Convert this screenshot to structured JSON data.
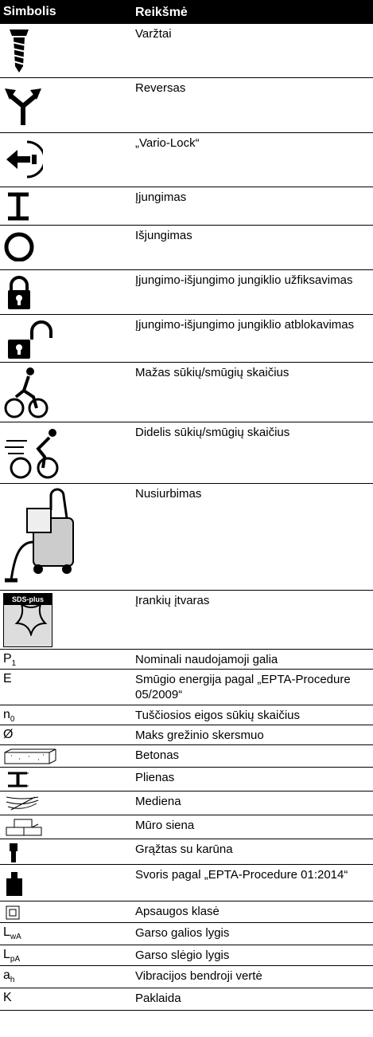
{
  "header": {
    "symbol": "Simbolis",
    "meaning": "Reikšmė"
  },
  "rows": [
    {
      "meaning": "Varžtai"
    },
    {
      "meaning": "Reversas"
    },
    {
      "meaning": "„Vario-Lock“"
    },
    {
      "meaning": "Įjungimas"
    },
    {
      "meaning": "Išjungimas"
    },
    {
      "meaning": "Įjungimo-išjungimo jungiklio užfiksavimas"
    },
    {
      "meaning": "Įjungimo-išjungimo jungiklio atblokavimas"
    },
    {
      "meaning": "Mažas sūkių/smūgių skaičius"
    },
    {
      "meaning": "Didelis sūkių/smūgių skaičius"
    },
    {
      "meaning": "Nusiurbimas"
    },
    {
      "meaning": "Įrankių įtvaras",
      "icon_label": "SDS-plus"
    },
    {
      "symbol": {
        "text": "P",
        "sub": "1"
      },
      "meaning": "Nominali naudojamoji galia"
    },
    {
      "symbol": {
        "text": "E"
      },
      "meaning": "Smūgio energija pagal „EPTA-Procedure 05/2009“"
    },
    {
      "symbol": {
        "text": "n",
        "sub": "0"
      },
      "meaning": "Tuščiosios eigos sūkių skaičius"
    },
    {
      "symbol": {
        "text": "Ø"
      },
      "meaning": "Maks grežinio skersmuo"
    },
    {
      "meaning": "Betonas"
    },
    {
      "meaning": "Plienas"
    },
    {
      "meaning": "Mediena"
    },
    {
      "meaning": "Mūro siena"
    },
    {
      "meaning": "Grąžtas su karūna"
    },
    {
      "meaning": "Svoris pagal „EPTA-Procedure 01:2014“"
    },
    {
      "meaning": "Apsaugos klasė"
    },
    {
      "symbol": {
        "text": "L",
        "sub": "wA"
      },
      "meaning": "Garso galios lygis"
    },
    {
      "symbol": {
        "text": "L",
        "sub": "pA"
      },
      "meaning": "Garso slėgio lygis"
    },
    {
      "symbol": {
        "text": "a",
        "sub": "h"
      },
      "meaning": "Vibracijos bendroji vertė"
    },
    {
      "symbol": {
        "text": "K"
      },
      "meaning": "Paklaida"
    }
  ]
}
